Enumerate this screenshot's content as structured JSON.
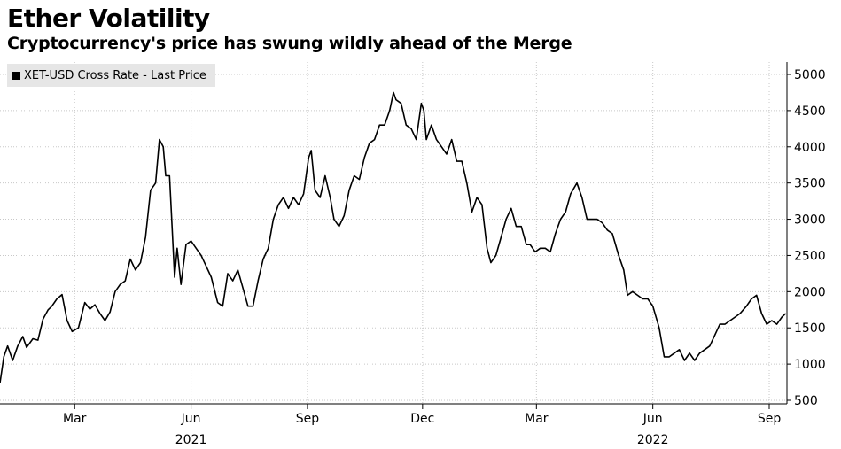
{
  "chart_data": {
    "type": "line",
    "title": "Ether Volatility",
    "subtitle": "Cryptocurrency's price has swung wildly ahead of the Merge",
    "legend": [
      "XET-USD Cross Rate - Last Price"
    ],
    "xlabel": "",
    "ylabel": "",
    "ylim": [
      500,
      5000
    ],
    "yticks": [
      500,
      1000,
      1500,
      2000,
      2500,
      3000,
      3500,
      4000,
      4500,
      5000
    ],
    "x_range": [
      "2021-01-01",
      "2022-09-15"
    ],
    "x_tick_labels": [
      {
        "date": "2021-03-01",
        "label": "Mar"
      },
      {
        "date": "2021-06-01",
        "label": "Jun"
      },
      {
        "date": "2021-09-01",
        "label": "Sep"
      },
      {
        "date": "2021-12-01",
        "label": "Dec"
      },
      {
        "date": "2022-03-01",
        "label": "Mar"
      },
      {
        "date": "2022-06-01",
        "label": "Jun"
      },
      {
        "date": "2022-09-01",
        "label": "Sep"
      }
    ],
    "year_labels": [
      {
        "date": "2021-06-01",
        "label": "2021"
      },
      {
        "date": "2022-06-01",
        "label": "2022"
      }
    ],
    "grid": true,
    "y_axis_side": "right",
    "series": [
      {
        "name": "XET-USD Cross Rate - Last Price",
        "x": [
          "2021-01-01",
          "2021-01-04",
          "2021-01-07",
          "2021-01-11",
          "2021-01-15",
          "2021-01-19",
          "2021-01-22",
          "2021-01-27",
          "2021-01-31",
          "2021-02-04",
          "2021-02-08",
          "2021-02-11",
          "2021-02-15",
          "2021-02-19",
          "2021-02-23",
          "2021-02-27",
          "2021-03-04",
          "2021-03-09",
          "2021-03-13",
          "2021-03-17",
          "2021-03-21",
          "2021-03-25",
          "2021-03-29",
          "2021-04-02",
          "2021-04-06",
          "2021-04-10",
          "2021-04-14",
          "2021-04-18",
          "2021-04-22",
          "2021-04-26",
          "2021-04-30",
          "2021-05-04",
          "2021-05-07",
          "2021-05-10",
          "2021-05-12",
          "2021-05-15",
          "2021-05-19",
          "2021-05-21",
          "2021-05-24",
          "2021-05-28",
          "2021-06-01",
          "2021-06-05",
          "2021-06-09",
          "2021-06-13",
          "2021-06-17",
          "2021-06-22",
          "2021-06-26",
          "2021-06-30",
          "2021-07-04",
          "2021-07-08",
          "2021-07-12",
          "2021-07-16",
          "2021-07-20",
          "2021-07-24",
          "2021-07-28",
          "2021-08-01",
          "2021-08-05",
          "2021-08-09",
          "2021-08-13",
          "2021-08-17",
          "2021-08-21",
          "2021-08-25",
          "2021-08-29",
          "2021-09-02",
          "2021-09-04",
          "2021-09-07",
          "2021-09-11",
          "2021-09-15",
          "2021-09-19",
          "2021-09-22",
          "2021-09-26",
          "2021-09-30",
          "2021-10-04",
          "2021-10-08",
          "2021-10-12",
          "2021-10-16",
          "2021-10-20",
          "2021-10-24",
          "2021-10-28",
          "2021-11-01",
          "2021-11-05",
          "2021-11-08",
          "2021-11-10",
          "2021-11-14",
          "2021-11-18",
          "2021-11-22",
          "2021-11-26",
          "2021-11-30",
          "2021-12-02",
          "2021-12-04",
          "2021-12-08",
          "2021-12-12",
          "2021-12-16",
          "2021-12-20",
          "2021-12-24",
          "2021-12-28",
          "2022-01-01",
          "2022-01-05",
          "2022-01-09",
          "2022-01-13",
          "2022-01-17",
          "2022-01-21",
          "2022-01-24",
          "2022-01-28",
          "2022-02-01",
          "2022-02-05",
          "2022-02-09",
          "2022-02-13",
          "2022-02-17",
          "2022-02-21",
          "2022-02-24",
          "2022-02-28",
          "2022-03-04",
          "2022-03-08",
          "2022-03-12",
          "2022-03-16",
          "2022-03-20",
          "2022-03-24",
          "2022-03-28",
          "2022-04-02",
          "2022-04-06",
          "2022-04-10",
          "2022-04-14",
          "2022-04-18",
          "2022-04-22",
          "2022-04-26",
          "2022-04-30",
          "2022-05-05",
          "2022-05-09",
          "2022-05-12",
          "2022-05-16",
          "2022-05-20",
          "2022-05-24",
          "2022-05-28",
          "2022-06-01",
          "2022-06-06",
          "2022-06-10",
          "2022-06-14",
          "2022-06-18",
          "2022-06-22",
          "2022-06-26",
          "2022-06-30",
          "2022-07-04",
          "2022-07-08",
          "2022-07-12",
          "2022-07-16",
          "2022-07-20",
          "2022-07-24",
          "2022-07-28",
          "2022-08-01",
          "2022-08-05",
          "2022-08-09",
          "2022-08-14",
          "2022-08-18",
          "2022-08-22",
          "2022-08-26",
          "2022-08-30",
          "2022-09-03",
          "2022-09-07",
          "2022-09-11",
          "2022-09-14"
        ],
        "values": [
          740,
          1100,
          1250,
          1050,
          1250,
          1380,
          1230,
          1350,
          1330,
          1620,
          1750,
          1800,
          1900,
          1960,
          1600,
          1450,
          1500,
          1850,
          1760,
          1820,
          1700,
          1600,
          1720,
          2000,
          2100,
          2150,
          2450,
          2300,
          2400,
          2750,
          3400,
          3500,
          4100,
          4000,
          3600,
          3600,
          2200,
          2600,
          2100,
          2650,
          2700,
          2600,
          2500,
          2350,
          2200,
          1850,
          1800,
          2250,
          2150,
          2300,
          2050,
          1800,
          1800,
          2150,
          2450,
          2600,
          3000,
          3200,
          3300,
          3150,
          3300,
          3200,
          3350,
          3850,
          3950,
          3400,
          3300,
          3600,
          3300,
          3000,
          2900,
          3050,
          3400,
          3600,
          3550,
          3850,
          4050,
          4100,
          4300,
          4300,
          4500,
          4750,
          4650,
          4600,
          4300,
          4250,
          4100,
          4600,
          4500,
          4100,
          4300,
          4100,
          4000,
          3900,
          4100,
          3800,
          3800,
          3500,
          3100,
          3300,
          3200,
          2600,
          2400,
          2500,
          2750,
          3000,
          3150,
          2900,
          2900,
          2650,
          2650,
          2550,
          2600,
          2600,
          2550,
          2800,
          3000,
          3100,
          3350,
          3500,
          3300,
          3000,
          3000,
          3000,
          2950,
          2850,
          2800,
          2500,
          2300,
          1950,
          2000,
          1950,
          1900,
          1900,
          1800,
          1500,
          1100,
          1100,
          1150,
          1200,
          1050,
          1150,
          1050,
          1150,
          1200,
          1250,
          1400,
          1550,
          1550,
          1600,
          1650,
          1700,
          1800,
          1900,
          1950,
          1700,
          1550,
          1600,
          1550,
          1650,
          1700
        ]
      }
    ]
  }
}
